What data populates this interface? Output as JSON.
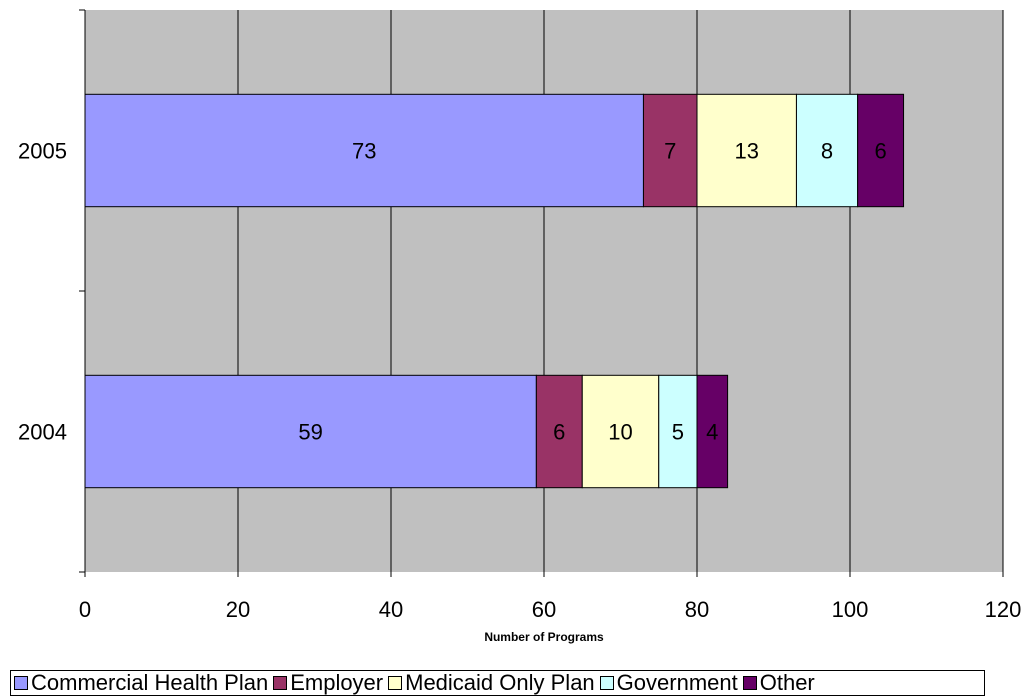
{
  "chart_data": {
    "type": "bar",
    "orientation": "horizontal",
    "stacked": true,
    "categories": [
      "2005",
      "2004"
    ],
    "series": [
      {
        "name": "Commercial Health Plan",
        "color": "#9999ff",
        "values": [
          73,
          59
        ]
      },
      {
        "name": "Employer",
        "color": "#993366",
        "values": [
          7,
          6
        ]
      },
      {
        "name": "Medicaid Only Plan",
        "color": "#ffffcc",
        "values": [
          13,
          10
        ]
      },
      {
        "name": "Government",
        "color": "#ccffff",
        "values": [
          8,
          5
        ]
      },
      {
        "name": "Other",
        "color": "#660066",
        "values": [
          6,
          4
        ]
      }
    ],
    "xlabel": "Number of Programs",
    "ylabel": "",
    "xlim": [
      0,
      120
    ],
    "xticks": [
      "0",
      "20",
      "40",
      "60",
      "80",
      "100",
      "120"
    ],
    "grid": true,
    "plot_background": "#c0c0c0",
    "legend_position": "bottom"
  }
}
